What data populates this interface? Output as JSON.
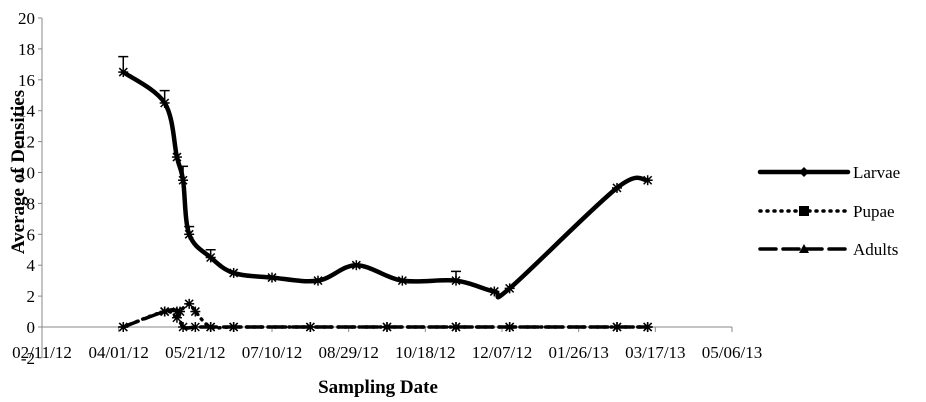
{
  "chart_data": {
    "type": "line",
    "title": "",
    "xlabel": "Sampling Date",
    "ylabel": "Average of Densities",
    "x_ticks": [
      "02/11/12",
      "04/01/12",
      "05/21/12",
      "07/10/12",
      "08/29/12",
      "10/18/12",
      "12/07/12",
      "01/26/13",
      "03/17/13",
      "05/06/13"
    ],
    "x_tick_days": [
      0,
      50,
      100,
      150,
      200,
      250,
      300,
      350,
      400,
      450
    ],
    "xlim": [
      0,
      450
    ],
    "ylim": [
      -2,
      20
    ],
    "y_ticks": [
      "-2",
      "0",
      "2",
      "4",
      "6",
      "8",
      "10",
      "12",
      "14",
      "16",
      "18",
      "20"
    ],
    "y_tick_values": [
      -2,
      0,
      2,
      4,
      6,
      8,
      10,
      12,
      14,
      16,
      18,
      20
    ],
    "grid": false,
    "legend_position": "right",
    "series": [
      {
        "name": "Larvae",
        "style": "solid",
        "marker": "diamond",
        "color": "#000000",
        "x": [
          53,
          80,
          88,
          92,
          96,
          110,
          125,
          150,
          180,
          205,
          235,
          270,
          295,
          305,
          375,
          395
        ],
        "y": [
          16.5,
          14.5,
          11.0,
          9.5,
          6.0,
          4.5,
          3.5,
          3.2,
          3.0,
          4.0,
          3.0,
          3.0,
          2.3,
          2.5,
          9.0,
          9.5
        ],
        "error_x": [
          53,
          80,
          92,
          96,
          110,
          270
        ],
        "error_y": [
          1.0,
          0.8,
          0.9,
          0.5,
          0.5,
          0.6
        ]
      },
      {
        "name": "Pupae",
        "style": "dotted",
        "marker": "square",
        "color": "#000000",
        "x": [
          53,
          80,
          88,
          90,
          96,
          100,
          110,
          125,
          175,
          225,
          270,
          305,
          375,
          395
        ],
        "y": [
          0.0,
          1.0,
          0.6,
          1.0,
          1.5,
          1.0,
          0.0,
          0.0,
          0.0,
          0.0,
          0.0,
          0.0,
          0.0,
          0.0
        ]
      },
      {
        "name": "Adults",
        "style": "dashed",
        "marker": "triangle",
        "color": "#000000",
        "x": [
          53,
          80,
          88,
          92,
          100,
          110,
          125,
          175,
          225,
          270,
          305,
          375,
          395
        ],
        "y": [
          0.0,
          1.0,
          1.0,
          0.0,
          0.0,
          0.0,
          0.0,
          0.0,
          0.0,
          0.0,
          0.0,
          0.0,
          0.0
        ]
      }
    ]
  }
}
